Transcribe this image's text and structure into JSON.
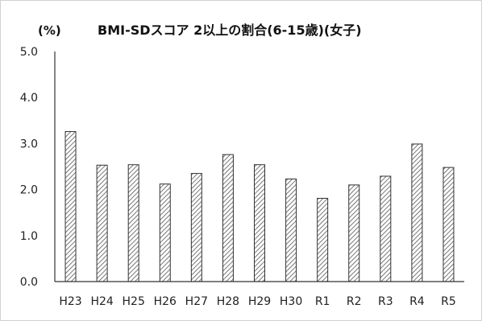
{
  "chart_data": {
    "type": "bar",
    "title": "BMI-SDスコア 2以上の割合(6-15歳)(女子)",
    "ylabel": "(%)",
    "xlabel": "",
    "categories": [
      "H23",
      "H24",
      "H25",
      "H26",
      "H27",
      "H28",
      "H29",
      "H30",
      "R1",
      "R2",
      "R3",
      "R4",
      "R5"
    ],
    "values": [
      3.26,
      2.53,
      2.54,
      2.12,
      2.35,
      2.76,
      2.54,
      2.23,
      1.81,
      2.1,
      2.29,
      2.99,
      2.48
    ],
    "ylim": [
      0,
      5.0
    ],
    "yticks": [
      "0.0",
      "1.0",
      "2.0",
      "3.0",
      "4.0",
      "5.0"
    ],
    "grid": false,
    "legend": "none",
    "bar_fill": "hatched",
    "colors": {
      "bar_stroke": "#333333",
      "hatch": "#555555",
      "axis": "#333333"
    }
  }
}
